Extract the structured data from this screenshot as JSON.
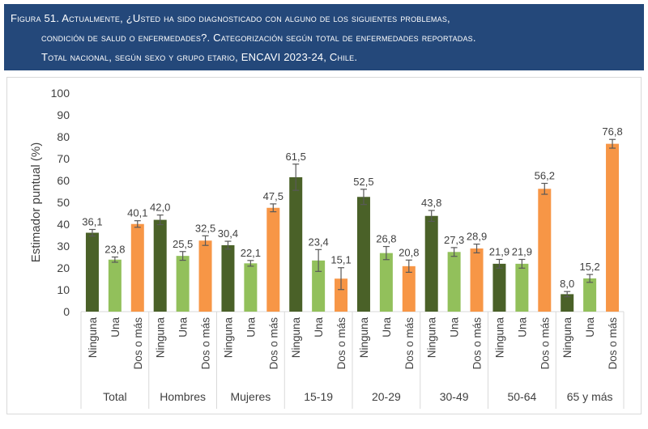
{
  "header": {
    "line1": "Figura 51. Actualmente, ¿Usted ha sido diagnosticado con alguno de los siguientes problemas,",
    "line2": "condición de salud o enfermedades?. Categorización según total de enfermedades reportadas.",
    "line3": "Total nacional, según sexo y grupo etario, ENCAVI 2023-24, Chile."
  },
  "chart_data": {
    "type": "bar",
    "ylabel": "Estimador puntual (%)",
    "ylim": [
      0,
      100
    ],
    "yticks": [
      "0",
      "10",
      "20",
      "30",
      "40",
      "50",
      "60",
      "70",
      "80",
      "90",
      "100"
    ],
    "grid": false,
    "groups": [
      "Total",
      "Hombres",
      "Mujeres",
      "15-19",
      "20-29",
      "30-49",
      "50-64",
      "65 y más"
    ],
    "categories": [
      "Ninguna",
      "Una",
      "Dos o más"
    ],
    "colors": [
      "#4a6128",
      "#92c05b",
      "#f79646"
    ],
    "values": [
      [
        36.1,
        23.8,
        40.1
      ],
      [
        42.0,
        25.5,
        32.5
      ],
      [
        30.4,
        22.1,
        47.5
      ],
      [
        61.5,
        23.4,
        15.1
      ],
      [
        52.5,
        26.8,
        20.8
      ],
      [
        43.8,
        27.3,
        28.9
      ],
      [
        21.9,
        21.9,
        56.2
      ],
      [
        8.0,
        15.2,
        76.8
      ]
    ],
    "labels": [
      [
        "36,1",
        "23,8",
        "40,1"
      ],
      [
        "42,0",
        "25,5",
        "32,5"
      ],
      [
        "30,4",
        "22,1",
        "47,5"
      ],
      [
        "61,5",
        "23,4",
        "15,1"
      ],
      [
        "52,5",
        "26,8",
        "20,8"
      ],
      [
        "43,8",
        "27,3",
        "28,9"
      ],
      [
        "21,9",
        "21,9",
        "56,2"
      ],
      [
        "8,0",
        "15,2",
        "76,8"
      ]
    ],
    "error_margins": [
      [
        1.5,
        1.2,
        1.5
      ],
      [
        2.2,
        2.0,
        2.2
      ],
      [
        1.8,
        1.3,
        1.8
      ],
      [
        6.0,
        5.0,
        5.0
      ],
      [
        3.5,
        3.0,
        2.8
      ],
      [
        2.5,
        2.0,
        2.0
      ],
      [
        2.0,
        2.0,
        2.5
      ],
      [
        1.2,
        1.8,
        2.0
      ]
    ]
  }
}
